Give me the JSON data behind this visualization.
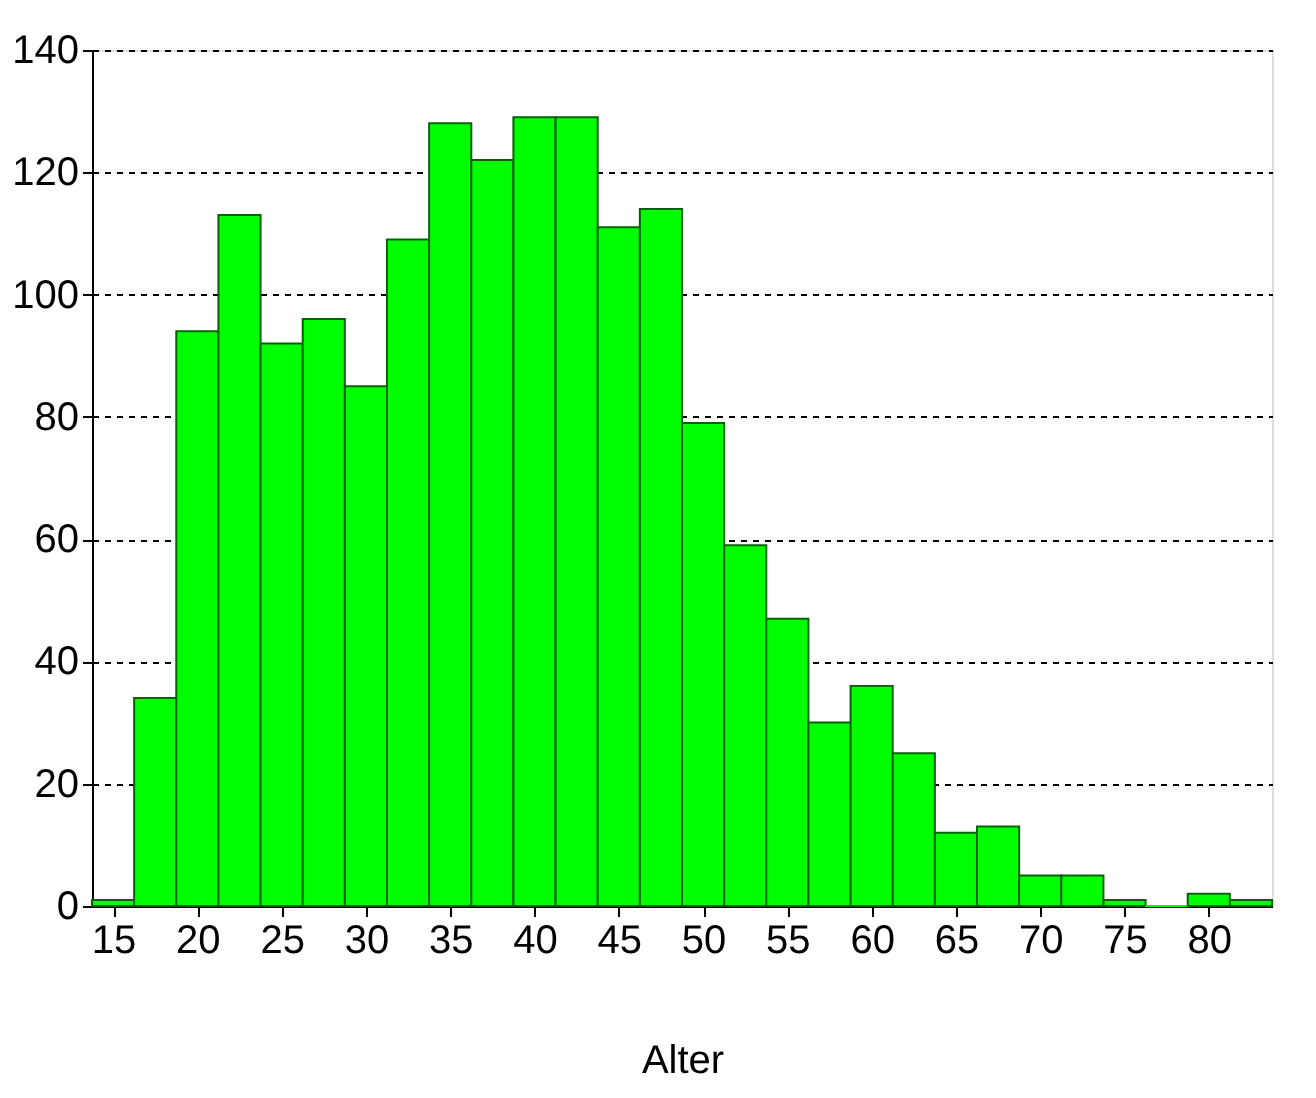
{
  "chart_data": {
    "type": "histogram",
    "xlabel": "Alter",
    "bins": [
      13.75,
      16.25,
      18.75,
      21.25,
      23.75,
      26.25,
      28.75,
      31.25,
      33.75,
      36.25,
      38.75,
      41.25,
      43.75,
      46.25,
      48.75,
      51.25,
      53.75,
      56.25,
      58.75,
      61.25,
      63.75,
      66.25,
      68.75,
      71.25,
      73.75,
      76.25,
      78.75,
      81.25,
      83.75
    ],
    "values": [
      1,
      34,
      94,
      113,
      92,
      96,
      85,
      109,
      128,
      122,
      129,
      129,
      111,
      114,
      79,
      59,
      47,
      30,
      36,
      25,
      12,
      13,
      5,
      5,
      1,
      0,
      2,
      1
    ],
    "color": "#00ff00",
    "xlim": [
      13.75,
      83.75
    ],
    "xticks": [
      15,
      20,
      25,
      30,
      35,
      40,
      45,
      50,
      55,
      60,
      65,
      70,
      75,
      80
    ],
    "ylim": [
      0,
      140
    ],
    "yticks": [
      0,
      20,
      40,
      60,
      80,
      100,
      120,
      140
    ],
    "grid": "y"
  }
}
